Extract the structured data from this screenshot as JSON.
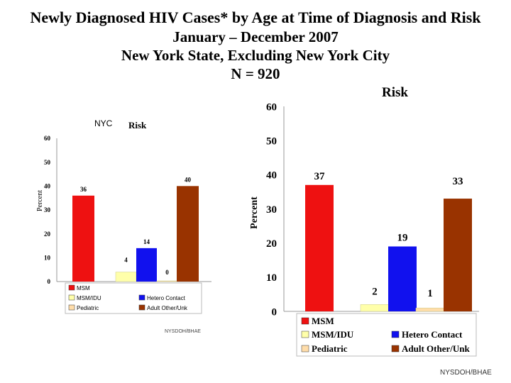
{
  "title": {
    "line1": "Newly Diagnosed HIV Cases* by Age at Time of Diagnosis and Risk",
    "line2": "January – December 2007",
    "line3": "New York State, Excluding New York City",
    "line4": "N = 920"
  },
  "chart_data": [
    {
      "type": "bar",
      "label": "NYC",
      "title": "Risk",
      "ylabel": "Percent",
      "ylim": [
        0,
        60
      ],
      "yticks": [
        "0",
        "10",
        "20",
        "30",
        "40",
        "50",
        "60"
      ],
      "categories": [
        "MSM",
        "MSM/IDU",
        "Hetero Contact",
        "Pediatric",
        "Adult Other/Unk"
      ],
      "values": [
        36,
        4,
        14,
        0,
        40
      ],
      "value_labels": [
        "36",
        "4",
        "14",
        "0",
        "40"
      ],
      "legend_labels": [
        "MSM",
        "MSM/IDU",
        "Hetero Contact",
        "Pediatric",
        "Adult Other/Unk"
      ],
      "source": "NYSDOH/BHAE"
    },
    {
      "type": "bar",
      "title": "Risk",
      "ylabel": "Percent",
      "ylim": [
        0,
        60
      ],
      "yticks": [
        "0",
        "10",
        "20",
        "30",
        "40",
        "50",
        "60"
      ],
      "categories": [
        "MSM",
        "MSM/IDU",
        "Hetero Contact",
        "Pediatric",
        "Adult Other/Unk"
      ],
      "values": [
        37,
        2,
        19,
        1,
        33
      ],
      "value_labels": [
        "37",
        "2",
        "19",
        "1",
        "33"
      ],
      "legend_labels": [
        "MSM",
        "MSM/IDU",
        "Hetero Contact",
        "Pediatric",
        "Adult Other/Unk"
      ],
      "source": "NYSDOH/BHAE"
    }
  ],
  "colors": [
    "#ee1111",
    "#ffffaa",
    "#1111ee",
    "#ffddaa",
    "#993300"
  ]
}
